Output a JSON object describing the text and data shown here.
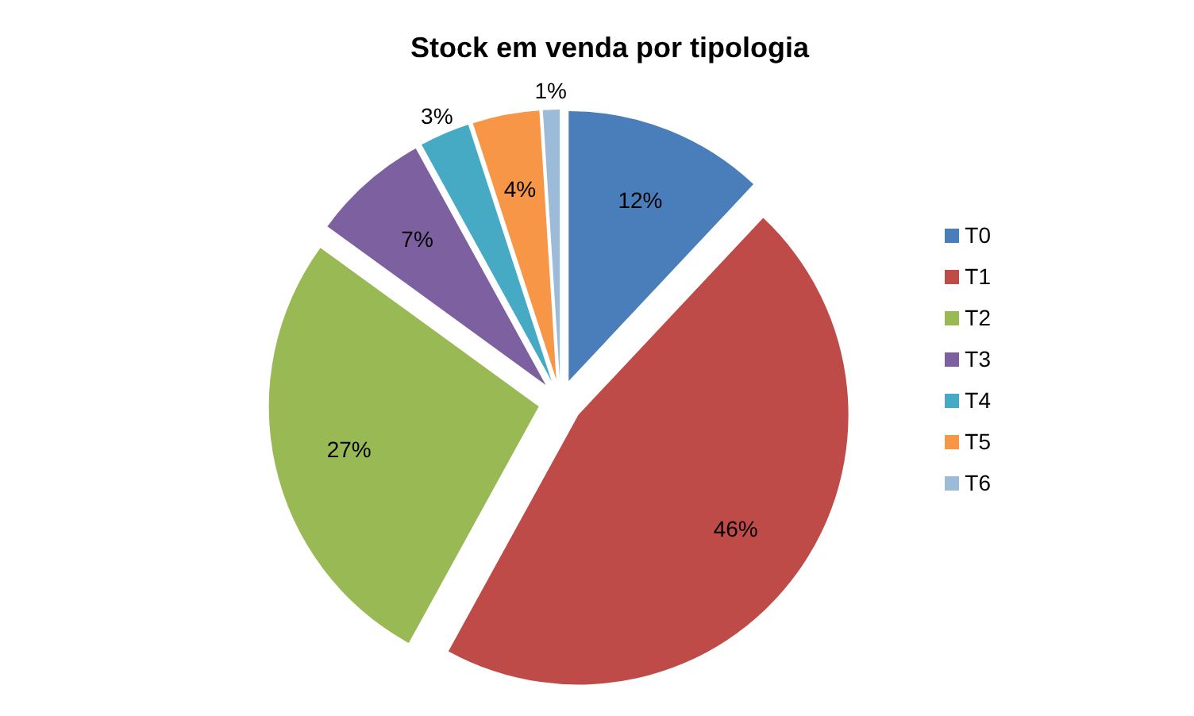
{
  "chart_data": {
    "type": "pie",
    "title": "Stock em venda por tipologia",
    "categories": [
      "T0",
      "T1",
      "T2",
      "T3",
      "T4",
      "T5",
      "T6"
    ],
    "values": [
      12,
      46,
      27,
      7,
      3,
      4,
      1
    ],
    "colors": [
      "#4a7ebb",
      "#be4b48",
      "#98b954",
      "#7d60a0",
      "#46aac5",
      "#f79646",
      "#9bbbd9"
    ],
    "value_labels": [
      "12%",
      "46%",
      "27%",
      "7%",
      "3%",
      "4%",
      "1%"
    ],
    "legend": "right"
  }
}
